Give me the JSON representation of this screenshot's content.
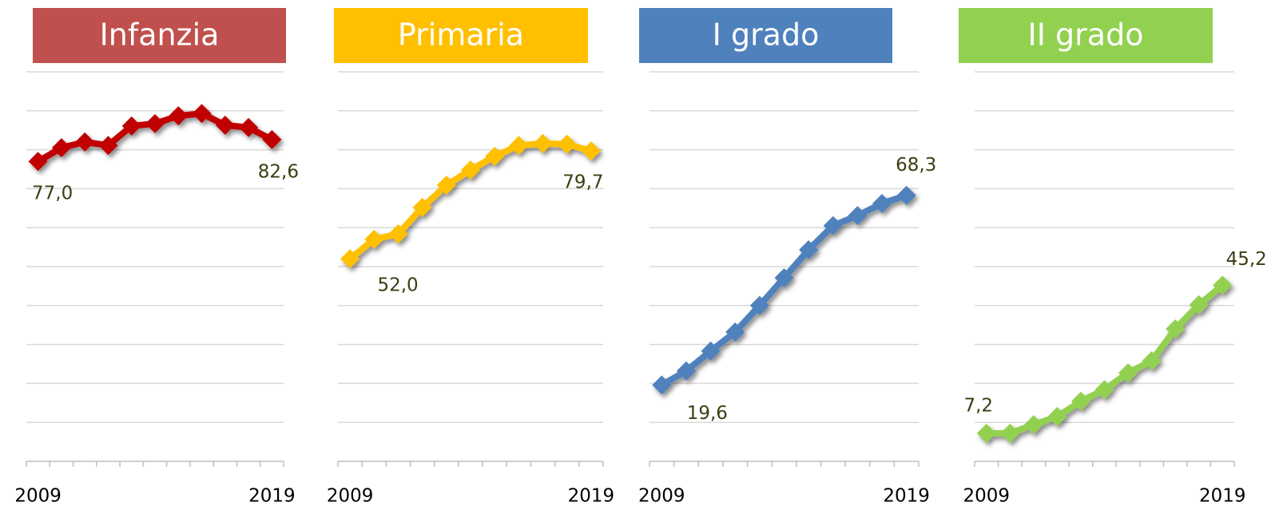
{
  "chart_data": [
    {
      "type": "line",
      "title": "Infanzia",
      "title_color": "#c0504d",
      "color": "#c00000",
      "categories": [
        "2009",
        null,
        null,
        null,
        null,
        null,
        null,
        null,
        null,
        null,
        "2019"
      ],
      "values": [
        77.0,
        80.5,
        82.0,
        81.1,
        86.1,
        86.7,
        88.7,
        89.3,
        86.3,
        85.7,
        82.6
      ],
      "value_labels": [
        "77,0",
        null,
        null,
        null,
        null,
        null,
        null,
        null,
        null,
        null,
        "82,6"
      ],
      "ylim": [
        0,
        100
      ],
      "yticks": [
        0,
        10,
        20,
        30,
        40,
        50,
        60,
        70,
        80,
        90,
        100
      ],
      "grid": true
    },
    {
      "type": "line",
      "title": "Primaria",
      "title_color": "#ffc000",
      "color": "#ffc000",
      "categories": [
        "2009",
        null,
        null,
        null,
        null,
        null,
        null,
        null,
        null,
        null,
        "2019"
      ],
      "values": [
        52.0,
        57.0,
        58.4,
        65.2,
        70.9,
        74.8,
        78.3,
        81.1,
        81.6,
        81.4,
        79.7
      ],
      "value_labels": [
        "52,0",
        null,
        null,
        null,
        null,
        null,
        null,
        null,
        null,
        null,
        "79,7"
      ],
      "ylim": [
        0,
        100
      ],
      "yticks": [
        0,
        10,
        20,
        30,
        40,
        50,
        60,
        70,
        80,
        90,
        100
      ],
      "grid": true
    },
    {
      "type": "line",
      "title": "I grado",
      "title_color": "#4f81bd",
      "color": "#4f81bd",
      "categories": [
        "2009",
        null,
        null,
        null,
        null,
        null,
        null,
        null,
        null,
        null,
        "2019"
      ],
      "values": [
        19.6,
        23.2,
        28.3,
        33.2,
        40.0,
        47.1,
        54.3,
        60.5,
        63.1,
        66.2,
        68.3
      ],
      "value_labels": [
        "19,6",
        null,
        null,
        null,
        null,
        null,
        null,
        null,
        null,
        null,
        "68,3"
      ],
      "ylim": [
        0,
        100
      ],
      "yticks": [
        0,
        10,
        20,
        30,
        40,
        50,
        60,
        70,
        80,
        90,
        100
      ],
      "grid": true
    },
    {
      "type": "line",
      "title": "II grado",
      "title_color": "#92d050",
      "color": "#92d050",
      "categories": [
        "2009",
        null,
        null,
        null,
        null,
        null,
        null,
        null,
        null,
        null,
        "2019"
      ],
      "values": [
        7.2,
        7.2,
        9.4,
        11.5,
        15.4,
        18.4,
        22.7,
        25.8,
        34.0,
        40.2,
        45.2
      ],
      "value_labels": [
        "7,2",
        null,
        null,
        null,
        null,
        null,
        null,
        null,
        null,
        null,
        "45,2"
      ],
      "ylim": [
        0,
        100
      ],
      "yticks": [
        0,
        10,
        20,
        30,
        40,
        50,
        60,
        70,
        80,
        90,
        100
      ],
      "grid": true
    }
  ]
}
